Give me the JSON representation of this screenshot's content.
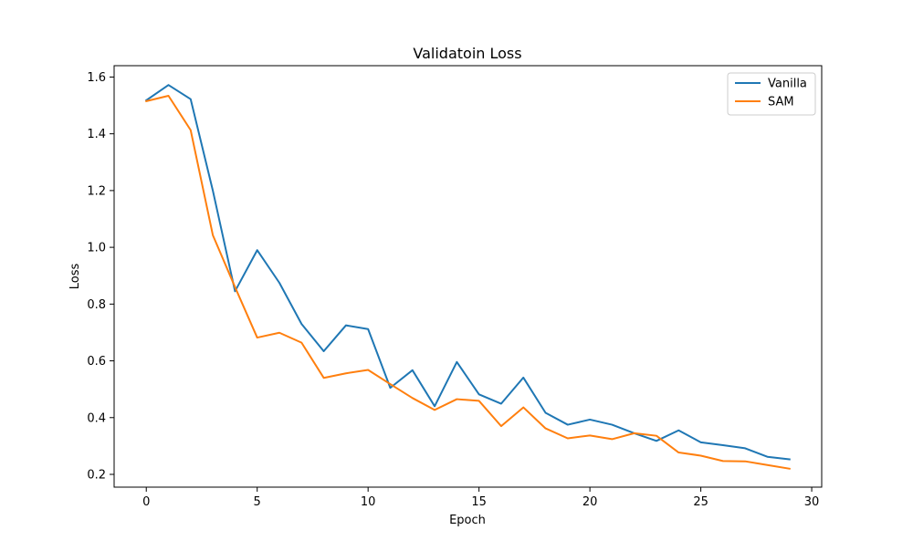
{
  "chart_data": {
    "type": "line",
    "title": "Validatoin Loss",
    "xlabel": "Epoch",
    "ylabel": "Loss",
    "xlim": [
      -1.45,
      30.45
    ],
    "ylim": [
      0.155,
      1.64
    ],
    "xticks": [
      0,
      5,
      10,
      15,
      20,
      25,
      30
    ],
    "xtick_labels": [
      "0",
      "5",
      "10",
      "15",
      "20",
      "25",
      "30"
    ],
    "yticks": [
      0.2,
      0.4,
      0.6,
      0.8,
      1.0,
      1.2,
      1.4,
      1.6
    ],
    "ytick_labels": [
      "0.2",
      "0.4",
      "0.6",
      "0.8",
      "1.0",
      "1.2",
      "1.4",
      "1.6"
    ],
    "grid": false,
    "legend_position": "top-right",
    "x": [
      0,
      1,
      2,
      3,
      4,
      5,
      6,
      7,
      8,
      9,
      10,
      11,
      12,
      13,
      14,
      15,
      16,
      17,
      18,
      19,
      20,
      21,
      22,
      23,
      24,
      25,
      26,
      27,
      28,
      29
    ],
    "series": [
      {
        "name": "Vanilla",
        "color": "#1f77b4",
        "values": [
          1.518,
          1.572,
          1.522,
          1.2,
          0.845,
          0.99,
          0.875,
          0.73,
          0.634,
          0.725,
          0.712,
          0.505,
          0.567,
          0.44,
          0.596,
          0.482,
          0.449,
          0.541,
          0.417,
          0.375,
          0.393,
          0.375,
          0.345,
          0.318,
          0.355,
          0.313,
          0.303,
          0.292,
          0.262,
          0.253
        ]
      },
      {
        "name": "SAM",
        "color": "#ff7f0e",
        "values": [
          1.515,
          1.534,
          1.413,
          1.043,
          0.86,
          0.682,
          0.699,
          0.664,
          0.54,
          0.556,
          0.568,
          0.518,
          0.469,
          0.427,
          0.465,
          0.459,
          0.37,
          0.436,
          0.362,
          0.327,
          0.337,
          0.324,
          0.345,
          0.336,
          0.277,
          0.266,
          0.247,
          0.246,
          0.233,
          0.22
        ]
      }
    ]
  }
}
